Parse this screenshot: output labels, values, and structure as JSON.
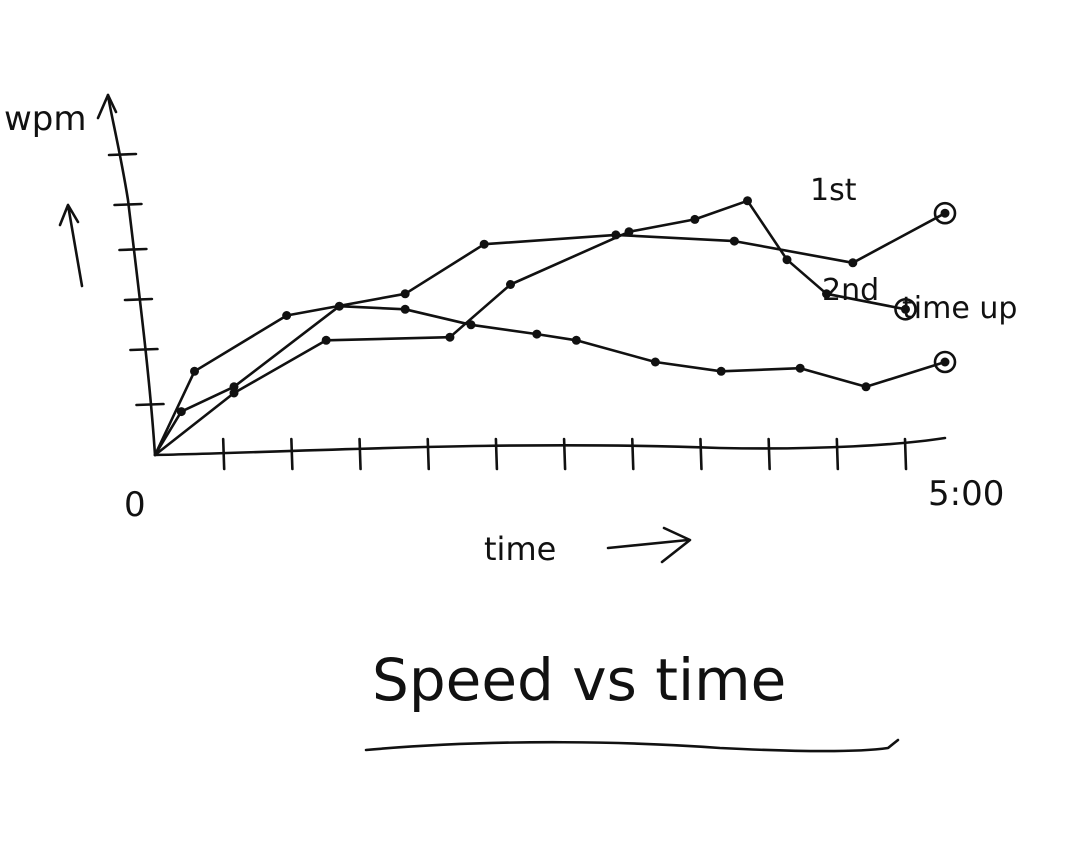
{
  "chart_data": {
    "type": "line",
    "title": "Speed vs time",
    "xlabel": "time",
    "ylabel": "wpm",
    "x_ticks": [
      "0",
      "5:00"
    ],
    "xlim": [
      0,
      300
    ],
    "ylim": [
      0,
      100
    ],
    "grid": false,
    "legend": "none",
    "series": [
      {
        "name": "1st",
        "x": [
          0,
          15,
          50,
          95,
          125,
          175,
          220,
          265,
          300
        ],
        "y": [
          0,
          27,
          45,
          52,
          68,
          71,
          69,
          62,
          78
        ]
      },
      {
        "name": "2nd",
        "x": [
          0,
          30,
          65,
          112,
          135,
          180,
          205,
          225,
          240,
          255,
          285
        ],
        "y": [
          0,
          20,
          37,
          38,
          55,
          72,
          76,
          82,
          63,
          52,
          47
        ]
      },
      {
        "name": "time up",
        "x": [
          0,
          10,
          30,
          70,
          95,
          120,
          145,
          160,
          190,
          215,
          245,
          270,
          300
        ],
        "y": [
          0,
          14,
          22,
          48,
          47,
          42,
          39,
          37,
          30,
          27,
          28,
          22,
          30
        ]
      }
    ],
    "annotations": [
      "1st",
      "2nd",
      "time up"
    ]
  },
  "axis_arrow_label": "time",
  "colors": {
    "ink": "#111111",
    "background": "#ffffff"
  }
}
